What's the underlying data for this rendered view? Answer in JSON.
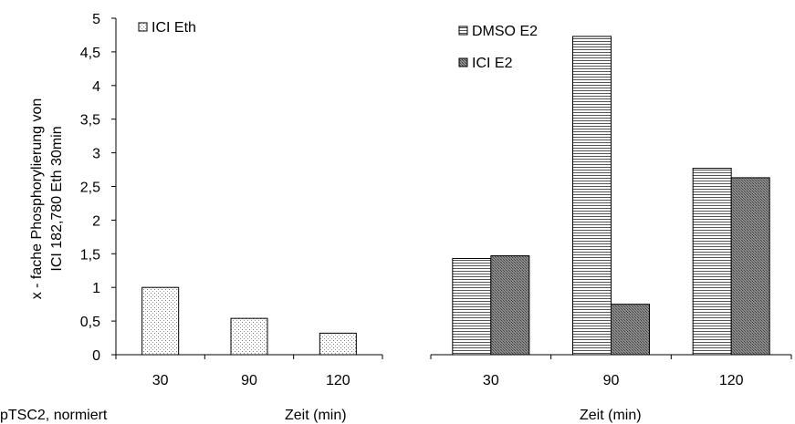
{
  "note_label": "pTSC2, normiert",
  "ylabel_line1": "x - fache Phosphorylierung von",
  "ylabel_line2": "ICI 182,780 Eth 30min",
  "chart_data": [
    {
      "type": "bar",
      "categories": [
        "30",
        "90",
        "120"
      ],
      "series": [
        {
          "name": "ICI Eth",
          "values": [
            1.0,
            0.54,
            0.32
          ],
          "pattern": "dots"
        }
      ],
      "xlabel": "Zeit (min)",
      "ylim": [
        0,
        5
      ],
      "yticks": [
        "0",
        "0,5",
        "1",
        "1,5",
        "2",
        "2,5",
        "3",
        "3,5",
        "4",
        "4,5",
        "5"
      ],
      "legend_position": "top-left",
      "grid": false
    },
    {
      "type": "bar",
      "categories": [
        "30",
        "90",
        "120"
      ],
      "series": [
        {
          "name": "DMSO E2",
          "values": [
            1.43,
            4.73,
            2.77
          ],
          "pattern": "hlines"
        },
        {
          "name": "ICI E2",
          "values": [
            1.47,
            0.75,
            2.63
          ],
          "pattern": "crosshatch"
        }
      ],
      "xlabel": "Zeit (min)",
      "ylim": [
        0,
        5
      ],
      "legend_position": "top-left",
      "grid": false
    }
  ]
}
